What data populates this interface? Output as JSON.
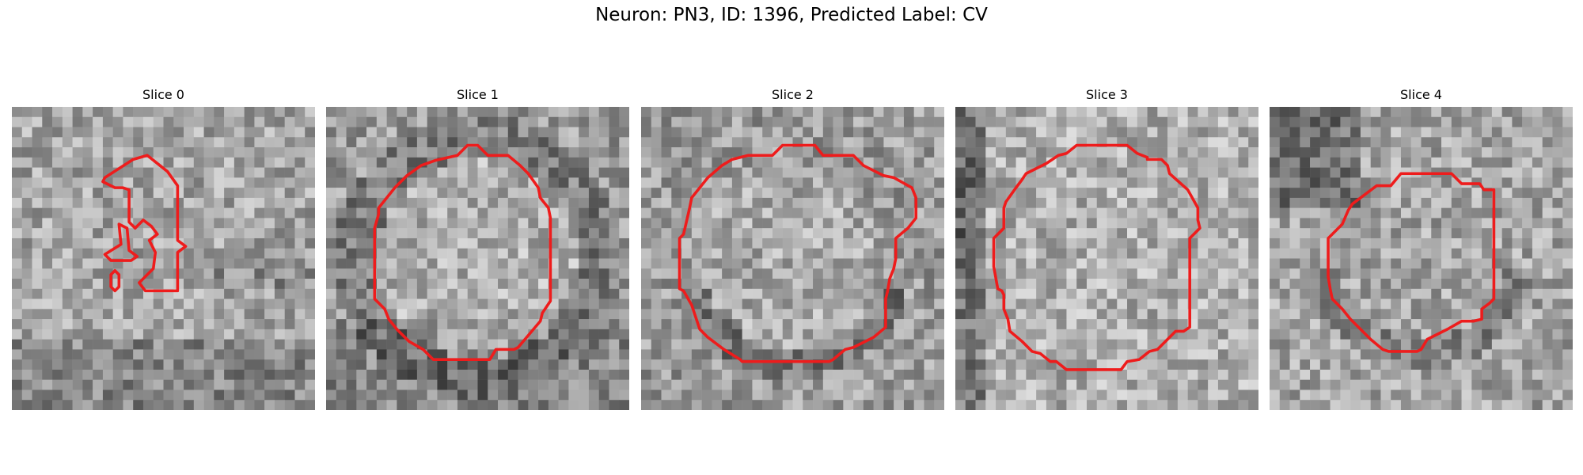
{
  "figure": {
    "title": "Neuron: PN3, ID: 1396, Predicted Label: CV"
  },
  "colors": {
    "contour": "#ee1c1c",
    "background": "#ffffff"
  },
  "panels": [
    {
      "title": "Slice 0",
      "seed": 11,
      "tone": "light-noisy",
      "contour": "irregular small cluster"
    },
    {
      "title": "Slice 1",
      "seed": 23,
      "tone": "dark-rim",
      "contour": "large octagon"
    },
    {
      "title": "Slice 2",
      "seed": 37,
      "tone": "mid",
      "contour": "large octagon"
    },
    {
      "title": "Slice 3",
      "seed": 41,
      "tone": "light",
      "contour": "large octagon"
    },
    {
      "title": "Slice 4",
      "seed": 53,
      "tone": "dark-upper-left",
      "contour": "medium octagon"
    }
  ]
}
